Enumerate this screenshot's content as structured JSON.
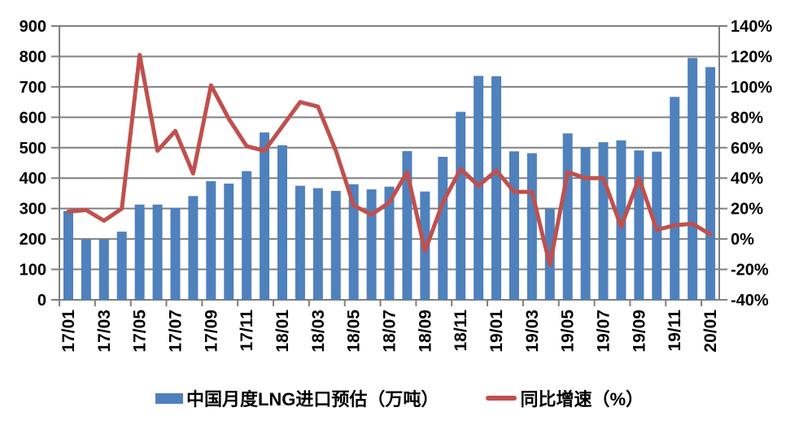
{
  "chart_data": {
    "type": "combo-bar-line",
    "title": "",
    "categories": [
      "17/01",
      "17/02",
      "17/03",
      "17/04",
      "17/05",
      "17/06",
      "17/07",
      "17/08",
      "17/09",
      "17/10",
      "17/11",
      "17/12",
      "18/01",
      "18/02",
      "18/03",
      "18/04",
      "18/05",
      "18/06",
      "18/07",
      "18/08",
      "18/09",
      "18/10",
      "18/11",
      "18/12",
      "19/01",
      "19/02",
      "19/03",
      "19/04",
      "19/05",
      "19/06",
      "19/07",
      "19/08",
      "19/09",
      "19/10",
      "19/11",
      "19/12",
      "20/01"
    ],
    "series": [
      {
        "name": "中国月度LNG进口预估（万吨）",
        "type": "bar",
        "axis": "left",
        "color": "#4F81BD",
        "values": [
          292,
          198,
          198,
          224,
          313,
          313,
          302,
          341,
          390,
          382,
          423,
          550,
          508,
          375,
          367,
          358,
          380,
          363,
          372,
          489,
          356,
          470,
          618,
          736,
          735,
          488,
          482,
          299,
          547,
          501,
          518,
          524,
          491,
          487,
          667,
          795,
          765
        ]
      },
      {
        "name": "同比增速（%）",
        "type": "line",
        "axis": "right",
        "color": "#C0504D",
        "values": [
          18,
          19,
          12,
          20,
          121,
          58,
          71,
          43,
          101,
          79,
          61,
          58,
          74,
          90,
          87,
          58,
          22,
          16,
          24,
          44,
          -8,
          24,
          46,
          35,
          45,
          31,
          31,
          -17,
          44,
          40,
          40,
          8,
          40,
          6,
          9,
          10,
          3
        ]
      }
    ],
    "left_axis": {
      "min": 0,
      "max": 900,
      "step": 100,
      "tick_labels": [
        "0",
        "100",
        "200",
        "300",
        "400",
        "500",
        "600",
        "700",
        "800",
        "900"
      ]
    },
    "right_axis": {
      "min": -40,
      "max": 140,
      "step": 20,
      "tick_labels": [
        "-40%",
        "-20%",
        "0%",
        "20%",
        "40%",
        "60%",
        "80%",
        "100%",
        "120%",
        "140%"
      ]
    },
    "x_axis": {
      "label_every": 2,
      "shown_tick_labels": [
        "17/01",
        "17/03",
        "17/05",
        "17/07",
        "17/09",
        "17/11",
        "18/01",
        "18/03",
        "18/05",
        "18/07",
        "18/09",
        "18/11",
        "19/01",
        "19/03",
        "19/05",
        "19/07",
        "19/09",
        "19/11",
        "20/01"
      ]
    },
    "grid": "on",
    "legend_position": "bottom"
  },
  "colors": {
    "bar": "#4F81BD",
    "line": "#C0504D",
    "grid": "#7F7F7F",
    "text": "#000000",
    "background": "#FFFFFF"
  }
}
